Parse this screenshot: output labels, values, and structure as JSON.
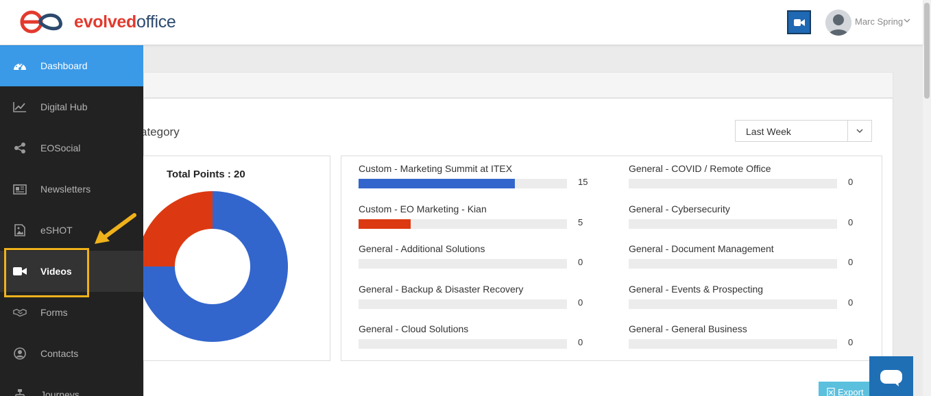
{
  "header": {
    "logo_part1": "evolved",
    "logo_part2": "office",
    "user_name": "Marc Spring"
  },
  "sidebar": {
    "items": [
      {
        "label": "Dashboard",
        "icon": "dashboard-icon",
        "state": "active"
      },
      {
        "label": "Digital Hub",
        "icon": "chart-line-icon",
        "state": "normal"
      },
      {
        "label": "EOSocial",
        "icon": "share-icon",
        "state": "normal"
      },
      {
        "label": "Newsletters",
        "icon": "newspaper-icon",
        "state": "normal"
      },
      {
        "label": "eSHOT",
        "icon": "image-file-icon",
        "state": "normal"
      },
      {
        "label": "Videos",
        "icon": "video-camera-icon",
        "state": "hover"
      },
      {
        "label": "Forms",
        "icon": "handshake-icon",
        "state": "normal"
      },
      {
        "label": "Contacts",
        "icon": "user-circle-icon",
        "state": "normal"
      },
      {
        "label": "Journeys",
        "icon": "sitemap-icon",
        "state": "normal"
      }
    ]
  },
  "panel": {
    "title": "ategory",
    "period_select": "Last Week",
    "total_points_label": "Total Points : 20",
    "export_label": "Export"
  },
  "categories": [
    {
      "label": "Custom - Marketing Summit at ITEX",
      "value": "15",
      "fraction": 0.75,
      "color": "#3366cc"
    },
    {
      "label": "Custom - EO Marketing - Kian",
      "value": "5",
      "fraction": 0.25,
      "color": "#dc3912"
    },
    {
      "label": "General - Additional Solutions",
      "value": "0",
      "fraction": 0,
      "color": "#3366cc"
    },
    {
      "label": "General - Backup & Disaster Recovery",
      "value": "0",
      "fraction": 0,
      "color": "#3366cc"
    },
    {
      "label": "General - Cloud Solutions",
      "value": "0",
      "fraction": 0,
      "color": "#3366cc"
    },
    {
      "label": "General - COVID / Remote Office",
      "value": "0",
      "fraction": 0,
      "color": "#3366cc"
    },
    {
      "label": "General - Cybersecurity",
      "value": "0",
      "fraction": 0,
      "color": "#3366cc"
    },
    {
      "label": "General - Document Management",
      "value": "0",
      "fraction": 0,
      "color": "#3366cc"
    },
    {
      "label": "General - Events & Prospecting",
      "value": "0",
      "fraction": 0,
      "color": "#3366cc"
    },
    {
      "label": "General - General Business",
      "value": "0",
      "fraction": 0,
      "color": "#3366cc"
    }
  ],
  "chart_data": {
    "type": "pie",
    "title": "Total Points : 20",
    "categories": [
      "Custom - Marketing Summit at ITEX",
      "Custom - EO Marketing - Kian"
    ],
    "values": [
      15,
      5
    ],
    "colors": [
      "#3366cc",
      "#dc3912"
    ]
  },
  "colors": {
    "accent": "#3b9ae8",
    "sidebar_bg": "#222222",
    "highlight": "#f0b21b",
    "brand_red": "#e23a2e",
    "brand_navy": "#2d4a6e"
  }
}
